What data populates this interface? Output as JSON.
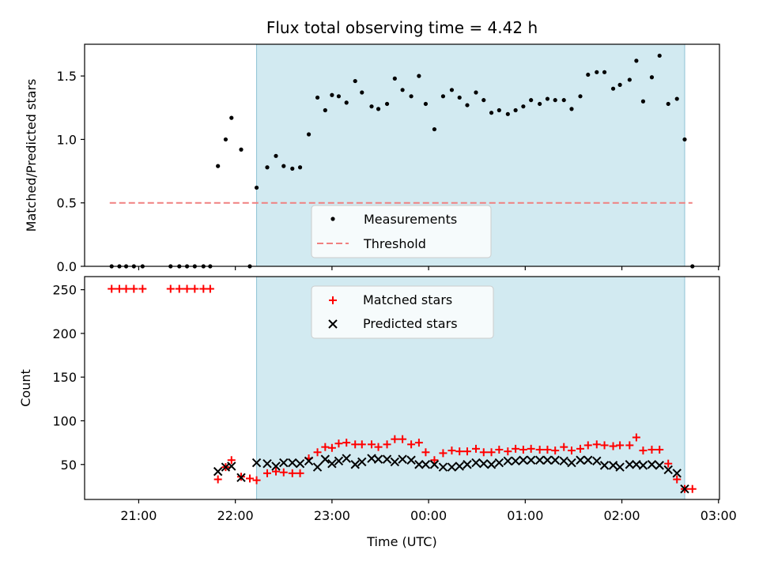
{
  "chart_data": {
    "type": "scatter",
    "title": "Flux total observing time = 4.42 h",
    "xlabel": "Time (UTC)",
    "x_ticks": [
      "21:00",
      "22:00",
      "23:00",
      "00:00",
      "01:00",
      "02:00",
      "03:00"
    ],
    "shaded_span": {
      "start_hours": 22.22,
      "end_hours": 26.65,
      "color": "#add8e6"
    },
    "top_panel": {
      "ylabel": "Matched/Predicted stars",
      "ylim": [
        0,
        1.75
      ],
      "y_ticks": [
        "0.0",
        "0.5",
        "1.0",
        "1.5"
      ],
      "legend": {
        "placement": "lower-center",
        "entries": [
          "Measurements",
          "Threshold"
        ]
      },
      "threshold": {
        "name": "Threshold",
        "value": 0.5,
        "x_start": 20.7,
        "x_end": 26.73,
        "color": "#f08080"
      },
      "measurements": {
        "name": "Measurements",
        "color": "#000000",
        "x": [
          20.72,
          20.8,
          20.87,
          20.95,
          21.04,
          21.33,
          21.42,
          21.5,
          21.58,
          21.67,
          21.74,
          21.82,
          21.9,
          21.96,
          22.06,
          22.15,
          22.22,
          22.33,
          22.42,
          22.5,
          22.59,
          22.67,
          22.76,
          22.85,
          22.93,
          23.0,
          23.07,
          23.15,
          23.24,
          23.31,
          23.41,
          23.48,
          23.57,
          23.65,
          23.73,
          23.82,
          23.9,
          23.97,
          24.06,
          24.15,
          24.24,
          24.32,
          24.4,
          24.49,
          24.57,
          24.65,
          24.73,
          24.82,
          24.9,
          24.98,
          25.06,
          25.15,
          25.23,
          25.31,
          25.4,
          25.48,
          25.57,
          25.65,
          25.74,
          25.82,
          25.91,
          25.98,
          26.08,
          26.15,
          26.22,
          26.31,
          26.39,
          26.48,
          26.57,
          26.65,
          26.73
        ],
        "y": [
          0,
          0,
          0,
          0,
          0,
          0,
          0,
          0,
          0,
          0,
          0,
          0.79,
          1.0,
          1.17,
          0.92,
          0,
          0.62,
          0.78,
          0.87,
          0.79,
          0.77,
          0.78,
          1.04,
          1.33,
          1.23,
          1.35,
          1.34,
          1.29,
          1.46,
          1.37,
          1.26,
          1.24,
          1.28,
          1.48,
          1.39,
          1.34,
          1.5,
          1.28,
          1.08,
          1.34,
          1.39,
          1.33,
          1.27,
          1.37,
          1.31,
          1.21,
          1.23,
          1.2,
          1.23,
          1.26,
          1.31,
          1.28,
          1.32,
          1.31,
          1.31,
          1.24,
          1.34,
          1.51,
          1.53,
          1.53,
          1.4,
          1.43,
          1.47,
          1.62,
          1.3,
          1.49,
          1.66,
          1.28,
          1.32,
          1.0,
          0
        ]
      }
    },
    "bottom_panel": {
      "ylabel": "Count",
      "ylim": [
        10,
        265
      ],
      "y_ticks": [
        "50",
        "100",
        "150",
        "200",
        "250"
      ],
      "legend": {
        "placement": "upper-center",
        "entries": [
          "Matched stars",
          "Predicted stars"
        ]
      },
      "matched": {
        "name": "Matched stars",
        "color": "#ff0000",
        "marker": "+",
        "x": [
          20.72,
          20.8,
          20.87,
          20.95,
          21.04,
          21.33,
          21.42,
          21.5,
          21.58,
          21.67,
          21.74,
          21.82,
          21.9,
          21.96,
          22.06,
          22.15,
          22.22,
          22.33,
          22.42,
          22.5,
          22.59,
          22.67,
          22.76,
          22.85,
          22.93,
          23.0,
          23.07,
          23.15,
          23.24,
          23.31,
          23.41,
          23.48,
          23.57,
          23.65,
          23.73,
          23.82,
          23.9,
          23.97,
          24.06,
          24.15,
          24.24,
          24.32,
          24.4,
          24.49,
          24.57,
          24.65,
          24.73,
          24.82,
          24.9,
          24.98,
          25.06,
          25.15,
          25.23,
          25.31,
          25.4,
          25.48,
          25.57,
          25.65,
          25.74,
          25.82,
          25.91,
          25.98,
          26.08,
          26.15,
          26.22,
          26.31,
          26.39,
          26.48,
          26.57,
          26.65,
          26.73
        ],
        "y": [
          251,
          251,
          251,
          251,
          251,
          251,
          251,
          251,
          251,
          251,
          251,
          33,
          47,
          55,
          36,
          34,
          32,
          40,
          42,
          41,
          40,
          40,
          57,
          64,
          70,
          69,
          74,
          75,
          73,
          73,
          73,
          70,
          73,
          79,
          79,
          73,
          75,
          64,
          55,
          63,
          66,
          65,
          65,
          68,
          64,
          64,
          67,
          65,
          68,
          67,
          68,
          67,
          67,
          66,
          70,
          66,
          68,
          72,
          73,
          72,
          71,
          72,
          72,
          81,
          66,
          67,
          67,
          51,
          33,
          22,
          22
        ]
      },
      "predicted": {
        "name": "Predicted stars",
        "color": "#000000",
        "marker": "x",
        "x": [
          21.82,
          21.9,
          21.96,
          22.06,
          22.22,
          22.33,
          22.42,
          22.5,
          22.59,
          22.67,
          22.76,
          22.85,
          22.93,
          23.0,
          23.07,
          23.15,
          23.24,
          23.31,
          23.41,
          23.48,
          23.57,
          23.65,
          23.73,
          23.82,
          23.9,
          23.97,
          24.06,
          24.15,
          24.24,
          24.32,
          24.4,
          24.49,
          24.57,
          24.65,
          24.73,
          24.82,
          24.9,
          24.98,
          25.06,
          25.15,
          25.23,
          25.31,
          25.4,
          25.48,
          25.57,
          25.65,
          25.74,
          25.82,
          25.91,
          25.98,
          26.08,
          26.15,
          26.22,
          26.31,
          26.39,
          26.48,
          26.57,
          26.65
        ],
        "y": [
          42,
          47,
          48,
          35,
          52,
          51,
          48,
          52,
          52,
          51,
          54,
          47,
          56,
          51,
          54,
          57,
          50,
          53,
          57,
          56,
          56,
          53,
          56,
          55,
          50,
          50,
          50,
          47,
          47,
          48,
          50,
          52,
          51,
          50,
          52,
          54,
          54,
          55,
          55,
          55,
          55,
          55,
          54,
          52,
          55,
          55,
          54,
          49,
          49,
          47,
          50,
          50,
          49,
          50,
          49,
          44,
          40,
          22
        ]
      }
    }
  }
}
